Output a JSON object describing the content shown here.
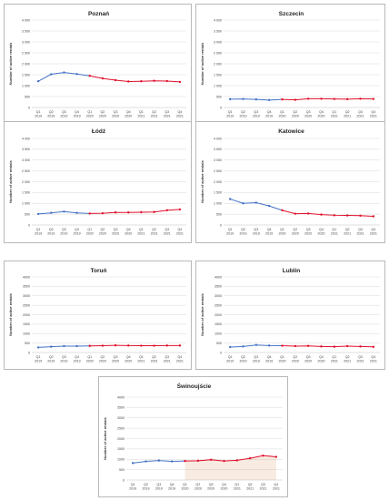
{
  "y_axis_label": "Number of active rentals",
  "quarter_labels": [
    "Q1",
    "Q2",
    "Q3",
    "Q4",
    "Q1",
    "Q2",
    "Q3",
    "Q4",
    "Q1",
    "Q2",
    "Q3",
    "Q4"
  ],
  "year_labels": [
    "2019",
    "2019",
    "2019",
    "2019",
    "2020",
    "2020",
    "2020",
    "2020",
    "2021",
    "2021",
    "2021",
    "2021"
  ],
  "colors": {
    "pre_2020": "#4472c4",
    "from_2020": "#e0102a",
    "area_fill": "#c55a11"
  },
  "chart_data": [
    {
      "type": "line",
      "title": "Poznań",
      "categories": [
        "Q1 2019",
        "Q2 2019",
        "Q3 2019",
        "Q4 2019",
        "Q1 2020",
        "Q2 2020",
        "Q3 2020",
        "Q4 2020",
        "Q1 2021",
        "Q2 2021",
        "Q3 2021",
        "Q4 2021"
      ],
      "values": [
        1200,
        1520,
        1600,
        1530,
        1450,
        1330,
        1250,
        1190,
        1200,
        1220,
        1210,
        1170
      ],
      "ylabel": "Number of active rentals",
      "ylim": [
        0,
        4000
      ],
      "yticks": [
        "0",
        "500",
        "1 000",
        "1 500",
        "2 000",
        "2 500",
        "3 000",
        "3 500",
        "4 000"
      ],
      "grid": true
    },
    {
      "type": "line",
      "title": "Szczecin",
      "categories": [
        "Q1 2019",
        "Q2 2019",
        "Q3 2019",
        "Q4 2019",
        "Q1 2020",
        "Q2 2020",
        "Q3 2020",
        "Q4 2020",
        "Q1 2021",
        "Q2 2021",
        "Q3 2021",
        "Q4 2021"
      ],
      "values": [
        380,
        390,
        370,
        340,
        370,
        350,
        400,
        400,
        390,
        380,
        400,
        390
      ],
      "ylabel": "Number of active rentals",
      "ylim": [
        0,
        4000
      ],
      "yticks": [
        "0",
        "500",
        "1 000",
        "1 500",
        "2 000",
        "2 500",
        "3 000",
        "3 500",
        "4 000"
      ],
      "grid": true
    },
    {
      "type": "line",
      "title": "Łódź",
      "categories": [
        "Q1 2019",
        "Q2 2019",
        "Q3 2019",
        "Q4 2019",
        "Q1 2020",
        "Q2 2020",
        "Q3 2020",
        "Q4 2020",
        "Q1 2021",
        "Q2 2021",
        "Q3 2021",
        "Q4 2021"
      ],
      "values": [
        510,
        560,
        620,
        560,
        530,
        540,
        580,
        580,
        590,
        600,
        680,
        720
      ],
      "ylabel": "Number of active rentals",
      "ylim": [
        0,
        4000
      ],
      "yticks": [
        "0",
        "500",
        "1 000",
        "1 500",
        "2 000",
        "2 500",
        "3 000",
        "3 500",
        "4 000"
      ],
      "grid": true
    },
    {
      "type": "line",
      "title": "Katowice",
      "categories": [
        "Q1 2019",
        "Q2 2019",
        "Q3 2019",
        "Q4 2019",
        "Q1 2020",
        "Q2 2020",
        "Q3 2020",
        "Q4 2020",
        "Q1 2021",
        "Q2 2021",
        "Q3 2021",
        "Q4 2021"
      ],
      "values": [
        1200,
        1000,
        1030,
        880,
        680,
        520,
        530,
        480,
        450,
        440,
        430,
        400
      ],
      "ylabel": "Number of active rentals",
      "ylim": [
        0,
        4000
      ],
      "yticks": [
        "0",
        "500",
        "1 000",
        "1 500",
        "2 000",
        "2 500",
        "3 000",
        "3 500",
        "4 000"
      ],
      "grid": true
    },
    {
      "type": "line",
      "title": "Toruń",
      "categories": [
        "Q1 2019",
        "Q2 2019",
        "Q3 2019",
        "Q4 2019",
        "Q1 2020",
        "Q2 2020",
        "Q3 2020",
        "Q4 2020",
        "Q1 2021",
        "Q2 2021",
        "Q3 2021",
        "Q4 2021"
      ],
      "values": [
        270,
        310,
        340,
        340,
        350,
        360,
        380,
        370,
        360,
        360,
        370,
        370
      ],
      "ylabel": "Number of active rentals",
      "ylim": [
        0,
        4000
      ],
      "yticks": [
        "0",
        "500",
        "1000",
        "1500",
        "2000",
        "2500",
        "3000",
        "3500",
        "4000"
      ],
      "grid": true
    },
    {
      "type": "line",
      "title": "Lublin",
      "categories": [
        "Q1 2019",
        "Q2 2019",
        "Q3 2019",
        "Q4 2019",
        "Q1 2020",
        "Q2 2020",
        "Q3 2020",
        "Q4 2020",
        "Q1 2021",
        "Q2 2021",
        "Q3 2021",
        "Q4 2021"
      ],
      "values": [
        290,
        320,
        400,
        370,
        360,
        340,
        350,
        320,
        310,
        340,
        320,
        300
      ],
      "ylabel": "Number of active rentals",
      "ylim": [
        0,
        4000
      ],
      "yticks": [
        "0",
        "500",
        "1000",
        "1500",
        "2000",
        "2500",
        "3000",
        "3500",
        "4000"
      ],
      "grid": true
    },
    {
      "type": "line",
      "title": "Świnoujście",
      "categories": [
        "Q1 2019",
        "Q2 2019",
        "Q3 2019",
        "Q4 2019",
        "Q1 2020",
        "Q2 2020",
        "Q3 2020",
        "Q4 2020",
        "Q1 2021",
        "Q2 2021",
        "Q3 2021",
        "Q4 2021"
      ],
      "values": [
        820,
        900,
        940,
        900,
        920,
        930,
        980,
        920,
        950,
        1050,
        1180,
        1120
      ],
      "ylabel": "Number of active rentals",
      "ylim": [
        0,
        4000
      ],
      "yticks": [
        "0",
        "500",
        "1000",
        "1500",
        "2000",
        "2500",
        "3000",
        "3500",
        "4000"
      ],
      "grid": true
    }
  ]
}
